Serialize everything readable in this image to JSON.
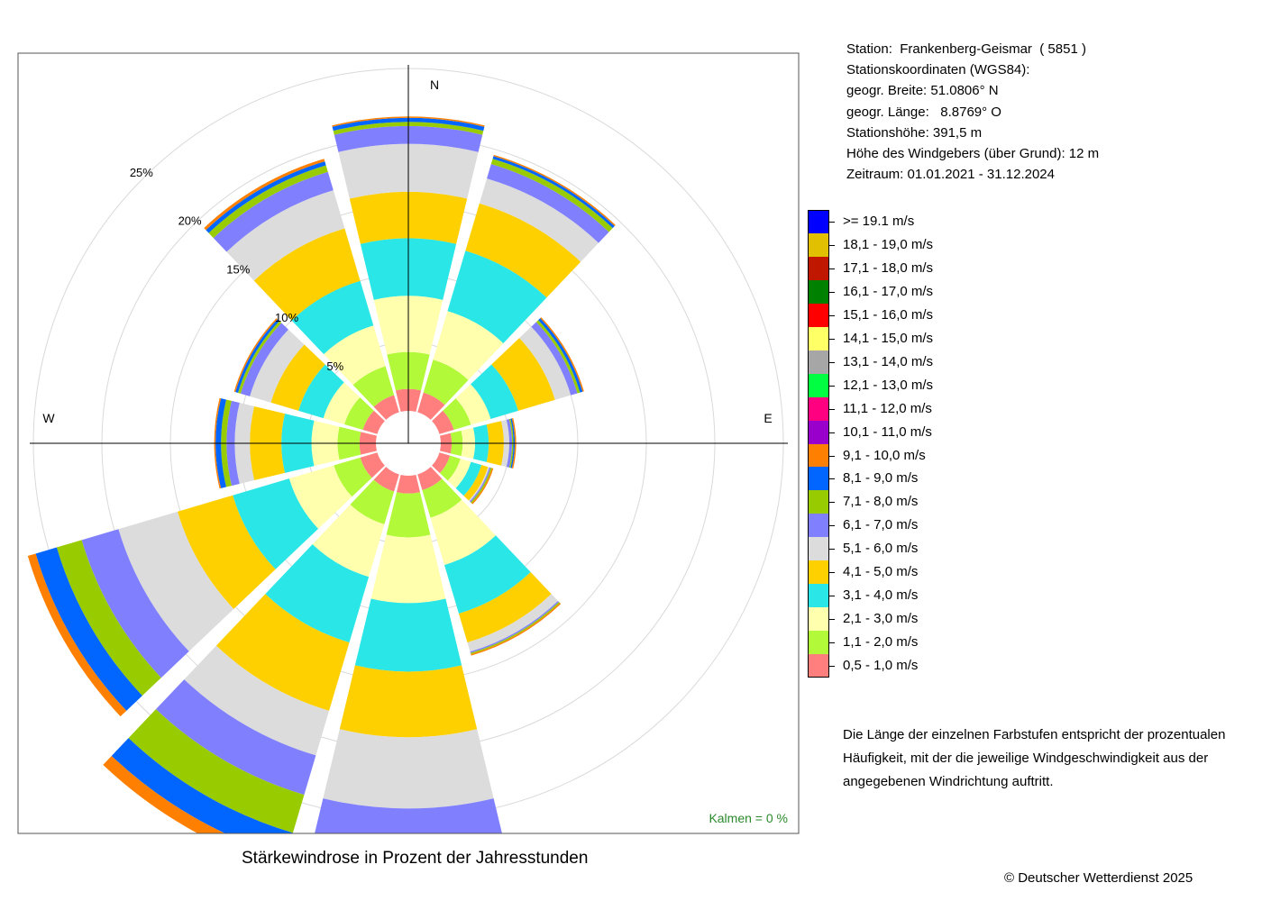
{
  "chart_data": {
    "type": "wind-rose",
    "title": "Stärkewindrose in Prozent der Jahresstunden",
    "calms_label": "Kalmen  =  0 %",
    "directions": [
      "N",
      "E",
      "W"
    ],
    "ring_labels": [
      "5%",
      "10%",
      "15%",
      "20%",
      "25%"
    ],
    "max_percent": 25,
    "sector_width_deg": 30,
    "sector_angles_deg": [
      0,
      30,
      60,
      90,
      120,
      150,
      180,
      210,
      240,
      270,
      300,
      330
    ],
    "speed_classes": [
      {
        "label": "0,5 - 1,0 m/s",
        "color": "#ff7f7f"
      },
      {
        "label": "1,1 - 2,0 m/s",
        "color": "#b2f93a"
      },
      {
        "label": "2,1 - 3,0 m/s",
        "color": "#ffffad"
      },
      {
        "label": "3,1 - 4,0 m/s",
        "color": "#2ae6e6"
      },
      {
        "label": "4,1 - 5,0 m/s",
        "color": "#ffd000"
      },
      {
        "label": "5,1 - 6,0 m/s",
        "color": "#dcdcdc"
      },
      {
        "label": "6,1 - 7,0 m/s",
        "color": "#8080ff"
      },
      {
        "label": "7,1 - 8,0 m/s",
        "color": "#99cc00"
      },
      {
        "label": "8,1 - 9,0 m/s",
        "color": "#0066ff"
      },
      {
        "label": "9,1 - 10,0 m/s",
        "color": "#ff8000"
      },
      {
        "label": "10,1 - 11,0 m/s",
        "color": "#9900cc"
      },
      {
        "label": "11,1 - 12,0 m/s",
        "color": "#ff0080"
      },
      {
        "label": "12,1 - 13,0 m/s",
        "color": "#00ff40"
      },
      {
        "label": "13,1 - 14,0 m/s",
        "color": "#a6a6a6"
      },
      {
        "label": "14,1 - 15,0 m/s",
        "color": "#ffff66"
      },
      {
        "label": "15,1 - 16,0 m/s",
        "color": "#ff0000"
      },
      {
        "label": "16,1 - 17,0 m/s",
        "color": "#008000"
      },
      {
        "label": "17,1 - 18,0 m/s",
        "color": "#c01800"
      },
      {
        "label": "18,1 - 19,0 m/s",
        "color": "#e0c000"
      },
      {
        "label": ">= 19.1 m/s",
        "color": "#0000ff"
      }
    ],
    "series_cumulative_percent": [
      [
        1.6,
        4.3,
        8.4,
        12.6,
        16.0,
        19.5,
        20.8,
        21.1,
        21.4,
        21.5
      ],
      [
        1.5,
        4.0,
        7.7,
        12.3,
        15.9,
        17.8,
        18.9,
        19.3,
        19.5,
        19.6
      ],
      [
        1.1,
        2.4,
        3.9,
        6.0,
        8.8,
        10.0,
        10.5,
        10.7,
        10.9,
        11.0
      ],
      [
        0.8,
        1.6,
        2.5,
        3.5,
        4.6,
        5.0,
        5.2,
        5.3,
        5.4,
        5.5
      ],
      [
        0.8,
        1.6,
        2.4,
        3.2,
        3.7,
        3.8,
        3.9,
        4.0,
        4.0,
        4.1
      ],
      [
        1.2,
        3.3,
        6.9,
        10.6,
        12.8,
        13.5,
        13.6,
        13.7,
        13.7,
        13.8
      ],
      [
        1.3,
        4.5,
        9.3,
        14.3,
        19.1,
        24.3,
        27.5,
        29.2,
        30.2,
        30.5
      ],
      [
        1.3,
        3.8,
        7.8,
        12.8,
        18.0,
        21.4,
        24.4,
        27.3,
        29.1,
        30.0
      ],
      [
        1.3,
        3.3,
        6.7,
        11.0,
        15.2,
        19.7,
        22.5,
        24.4,
        26.0,
        26.6
      ],
      [
        1.2,
        2.8,
        4.7,
        6.9,
        9.2,
        10.3,
        10.9,
        11.3,
        11.7,
        11.8
      ],
      [
        1.1,
        2.5,
        4.1,
        6.0,
        8.1,
        9.7,
        10.4,
        10.6,
        10.8,
        10.9
      ],
      [
        1.3,
        3.5,
        6.6,
        10.0,
        14.0,
        16.9,
        18.3,
        18.8,
        19.1,
        19.3
      ]
    ]
  },
  "station": {
    "lines": [
      "Station:  Frankenberg-Geismar  ( 5851 )",
      "Stationskoordinaten (WGS84):",
      "geogr. Breite: 51.0806° N",
      "geogr. Länge:   8.8769° O",
      "Stationshöhe: 391,5 m",
      "Höhe des Windgebers (über Grund): 12 m",
      "Zeitraum: 01.01.2021 - 31.12.2024"
    ]
  },
  "legend_order": [
    ">= 19.1 m/s",
    "18,1 - 19,0 m/s",
    "17,1 - 18,0 m/s",
    "16,1 - 17,0 m/s",
    "15,1 - 16,0 m/s",
    "14,1 - 15,0 m/s",
    "13,1 - 14,0 m/s",
    "12,1 - 13,0 m/s",
    "11,1 - 12,0 m/s",
    "10,1 - 11,0 m/s",
    "9,1 - 10,0 m/s",
    "8,1 - 9,0 m/s",
    "7,1 - 8,0 m/s",
    "6,1 - 7,0 m/s",
    "5,1 - 6,0 m/s",
    "4,1 - 5,0 m/s",
    "3,1 - 4,0 m/s",
    "2,1 - 3,0 m/s",
    "1,1 - 2,0 m/s",
    "0,5 - 1,0 m/s"
  ],
  "note": "Die Länge der einzelnen Farbstufen entspricht der prozentualen Häufigkeit, mit der die jeweilige Windgeschwindigkeit aus der angegebenen Windrichtung auftritt.",
  "copyright": "© Deutscher Wetterdienst  2025",
  "colors": {
    "calms_text": "#2a8a2a",
    "grid": "#d9d9d9",
    "frame": "#555555"
  }
}
